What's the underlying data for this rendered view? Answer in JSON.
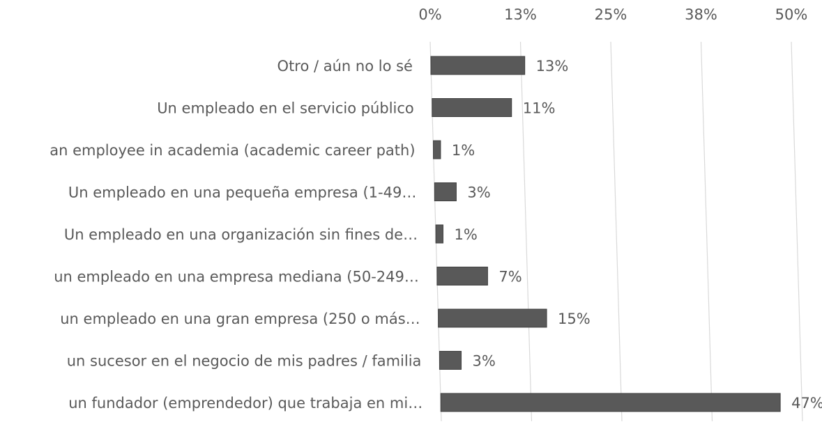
{
  "chart_data": {
    "type": "bar",
    "orientation": "horizontal",
    "categories": [
      "Otro / aún no lo sé",
      "Un empleado en el servicio público",
      "an employee in academia (academic career path)",
      "Un empleado en una pequeña empresa (1-49…",
      "Un empleado en una organización sin fines de…",
      "un empleado en una empresa mediana (50-249…",
      "un empleado en una gran empresa (250 o más…",
      "un sucesor en el negocio de mis padres / familia",
      "un fundador (emprendedor) que trabaja en mi…"
    ],
    "values": [
      13,
      11,
      1,
      3,
      1,
      7,
      15,
      3,
      47
    ],
    "value_labels": [
      "13%",
      "11%",
      "1%",
      "3%",
      "1%",
      "7%",
      "15%",
      "3%",
      "47%"
    ],
    "color": "#595959",
    "xlim": [
      0,
      50
    ],
    "xticks": [
      {
        "value": 0,
        "label": "0%"
      },
      {
        "value": 12.5,
        "label": "13%"
      },
      {
        "value": 25,
        "label": "25%"
      },
      {
        "value": 37.5,
        "label": "38%"
      },
      {
        "value": 50,
        "label": "50%"
      }
    ],
    "grid": true
  }
}
